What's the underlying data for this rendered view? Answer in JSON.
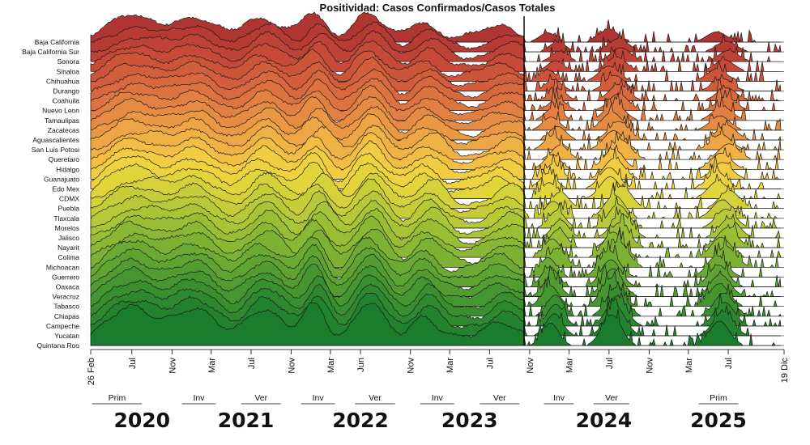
{
  "chart_data": {
    "type": "area",
    "title": "Positividad: Casos Confirmados/Casos Totales",
    "xlabel": "",
    "ylabel": "",
    "x_range": [
      "2020-02-26",
      "2025-12-19"
    ],
    "cutoff_date": "2023-10-15",
    "rows": [
      {
        "name": "Baja California",
        "color": "#b03431"
      },
      {
        "name": "Baja California Sur",
        "color": "#b73a33"
      },
      {
        "name": "Sonora",
        "color": "#be4235"
      },
      {
        "name": "Sinaloa",
        "color": "#c64a37"
      },
      {
        "name": "Chihuahua",
        "color": "#cc5439"
      },
      {
        "name": "Durango",
        "color": "#d25e3c"
      },
      {
        "name": "Coahuila",
        "color": "#d8683e"
      },
      {
        "name": "Nuevo Leon",
        "color": "#dd7340"
      },
      {
        "name": "Tamaulipas",
        "color": "#e27f42"
      },
      {
        "name": "Zacatecas",
        "color": "#e68b43"
      },
      {
        "name": "Aguascalientes",
        "color": "#ea9844"
      },
      {
        "name": "San Luis Potosi",
        "color": "#eea545"
      },
      {
        "name": "Queretaro",
        "color": "#f1b245"
      },
      {
        "name": "Hidalgo",
        "color": "#f2bf44"
      },
      {
        "name": "Guanajuato",
        "color": "#f2cc42"
      },
      {
        "name": "Edo Mex",
        "color": "#eed33e"
      },
      {
        "name": "CDMX",
        "color": "#e2d43b"
      },
      {
        "name": "Puebla",
        "color": "#d4d13a"
      },
      {
        "name": "Tlaxcala",
        "color": "#c6cd39"
      },
      {
        "name": "Morelos",
        "color": "#b7c938"
      },
      {
        "name": "Jalisco",
        "color": "#a8c437"
      },
      {
        "name": "Nayarit",
        "color": "#99be36"
      },
      {
        "name": "Colima",
        "color": "#8ab835"
      },
      {
        "name": "Michoacan",
        "color": "#7cb134"
      },
      {
        "name": "Guerrero",
        "color": "#6daa33"
      },
      {
        "name": "Oaxaca",
        "color": "#5fa332"
      },
      {
        "name": "Veracruz",
        "color": "#529c31"
      },
      {
        "name": "Tabasco",
        "color": "#459530"
      },
      {
        "name": "Chiapas",
        "color": "#398e2f"
      },
      {
        "name": "Campeche",
        "color": "#2e882e"
      },
      {
        "name": "Yucatan",
        "color": "#23822d"
      },
      {
        "name": "Quintana Roo",
        "color": "#1a7c2c"
      }
    ],
    "x_ticks": [
      {
        "label": "26 Feb",
        "date": "2020-02-26"
      },
      {
        "label": "Jul",
        "date": "2020-07-01"
      },
      {
        "label": "Nov",
        "date": "2020-11-01"
      },
      {
        "label": "Mar",
        "date": "2021-03-01"
      },
      {
        "label": "Jul",
        "date": "2021-07-01"
      },
      {
        "label": "Nov",
        "date": "2021-11-01"
      },
      {
        "label": "Mar",
        "date": "2022-03-01"
      },
      {
        "label": "Jun",
        "date": "2022-06-01"
      },
      {
        "label": "Nov",
        "date": "2022-11-01"
      },
      {
        "label": "Mar",
        "date": "2023-03-01"
      },
      {
        "label": "Jul",
        "date": "2023-07-01"
      },
      {
        "label": "Nov",
        "date": "2023-11-01"
      },
      {
        "label": "Mar",
        "date": "2024-03-01"
      },
      {
        "label": "Jul",
        "date": "2024-07-01"
      },
      {
        "label": "Nov",
        "date": "2024-11-01"
      },
      {
        "label": "Mar",
        "date": "2025-03-01"
      },
      {
        "label": "Jul",
        "date": "2025-07-01"
      },
      {
        "label": "19 Dic",
        "date": "2025-12-19"
      }
    ],
    "seasons": [
      {
        "label": "Prim",
        "start": "2020-03-01",
        "end": "2020-08-01"
      },
      {
        "label": "Inv",
        "start": "2020-12-01",
        "end": "2021-03-15"
      },
      {
        "label": "Ver",
        "start": "2021-06-01",
        "end": "2021-09-30"
      },
      {
        "label": "Inv",
        "start": "2021-12-01",
        "end": "2022-03-15"
      },
      {
        "label": "Ver",
        "start": "2022-05-15",
        "end": "2022-09-15"
      },
      {
        "label": "Inv",
        "start": "2022-12-01",
        "end": "2023-03-15"
      },
      {
        "label": "Ver",
        "start": "2023-06-01",
        "end": "2023-10-01"
      },
      {
        "label": "Inv",
        "start": "2023-12-15",
        "end": "2024-03-15"
      },
      {
        "label": "Ver",
        "start": "2024-05-15",
        "end": "2024-09-01"
      },
      {
        "label": "Prim",
        "start": "2025-04-01",
        "end": "2025-08-01"
      }
    ],
    "years": [
      {
        "label": "2020",
        "date": "2020-08-01"
      },
      {
        "label": "2021",
        "date": "2021-06-15"
      },
      {
        "label": "2022",
        "date": "2022-06-01"
      },
      {
        "label": "2023",
        "date": "2023-05-01"
      },
      {
        "label": "2024",
        "date": "2024-06-15"
      },
      {
        "label": "2025",
        "date": "2025-06-01"
      }
    ]
  }
}
